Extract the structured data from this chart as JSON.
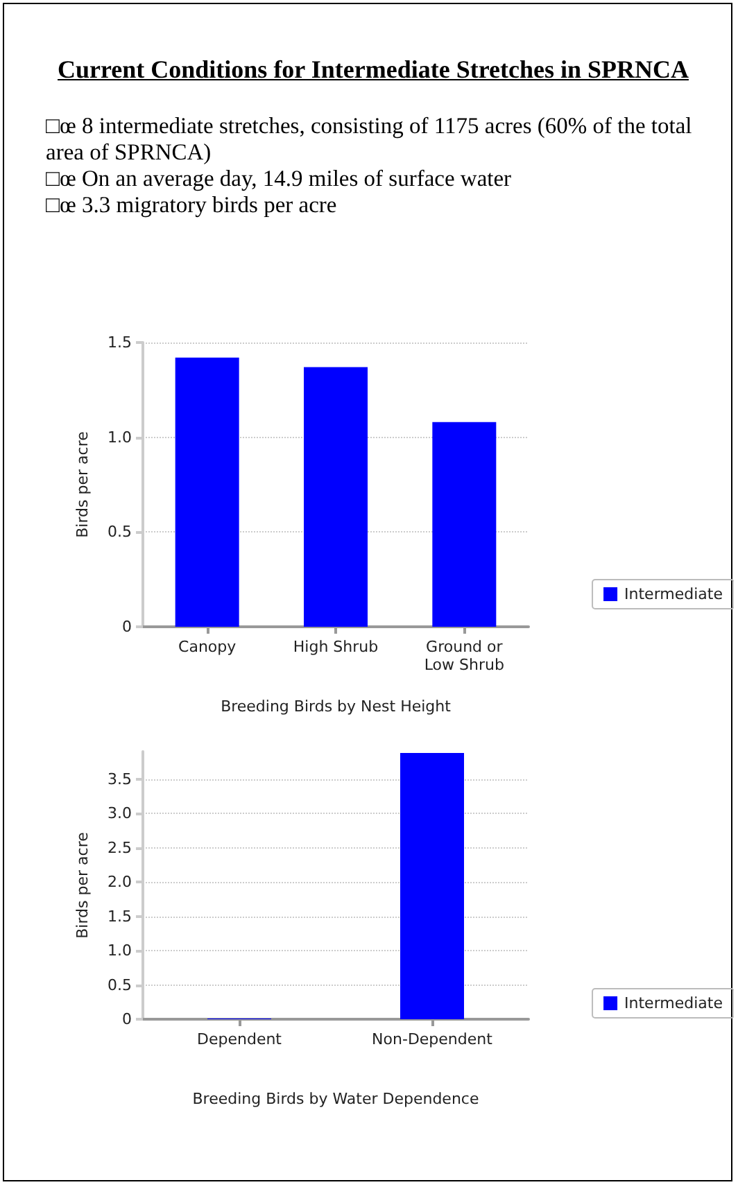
{
  "chart_data": [
    {
      "type": "other",
      "title": "Current Conditions for Intermediate Stretches in SPRNCA",
      "annotations": [
        "□œ 8 intermediate stretches, consisting of 1175 acres (60% of the total area of SPRNCA)",
        "□œ On an average day, 14.9 miles of surface water",
        "□œ 3.3 migratory birds per acre"
      ]
    },
    {
      "type": "bar",
      "xlabel": "Breeding Birds by Nest Height",
      "ylabel": "Birds per acre",
      "categories": [
        "Canopy",
        "High Shrub",
        "Ground or\nLow Shrub"
      ],
      "series": [
        {
          "name": "Intermediate",
          "color": "#0000ff",
          "values": [
            1.42,
            1.37,
            1.08
          ]
        }
      ],
      "ylim": [
        0,
        1.5
      ],
      "yticks": [
        0,
        0.5,
        {
          "value": 1,
          "label": "1.0"
        },
        1.5
      ],
      "grid": "y",
      "legend": "right"
    },
    {
      "type": "bar",
      "xlabel": "Breeding Birds by Water Dependence",
      "ylabel": "Birds per acre",
      "categories": [
        "Dependent",
        "Non-Dependent"
      ],
      "series": [
        {
          "name": "Intermediate",
          "color": "#0000ff",
          "values": [
            0.01,
            3.88
          ]
        }
      ],
      "ylim": [
        0,
        3.9
      ],
      "yticks": [
        0,
        0.5,
        {
          "value": 1,
          "label": "1.0"
        },
        1.5,
        {
          "value": 2,
          "label": "2.0"
        },
        2.5,
        {
          "value": 3,
          "label": "3.0"
        },
        3.5
      ],
      "grid": "y",
      "legend": "right"
    }
  ]
}
